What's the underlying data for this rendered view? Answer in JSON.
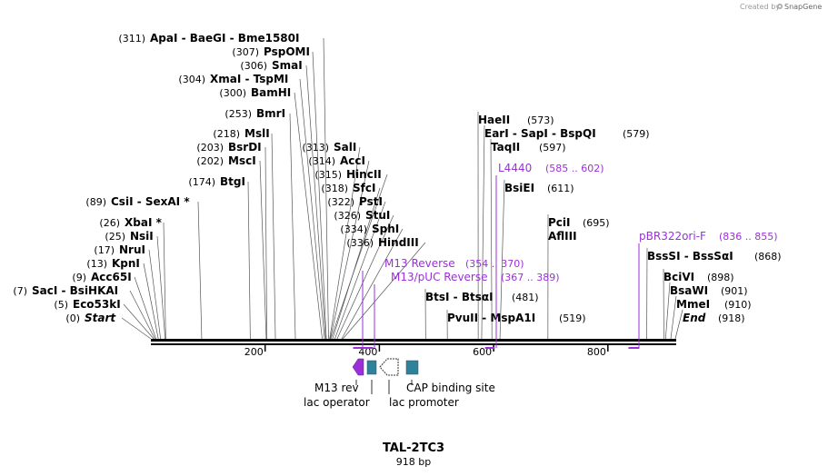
{
  "credit": {
    "prefix": "Created by",
    "brand": "SnapGene"
  },
  "map": {
    "title": "TAL-2TC3",
    "length_label": "918 bp",
    "length": 918
  },
  "ticks": [
    {
      "value": 200,
      "label": "200"
    },
    {
      "value": 400,
      "label": "400"
    },
    {
      "value": 600,
      "label": "600"
    },
    {
      "value": 800,
      "label": "800"
    }
  ],
  "sites": [
    {
      "id": "start",
      "pos": "(0)",
      "name": "Start",
      "italic": true,
      "bp": 0
    },
    {
      "id": "eco53ki",
      "pos": "(5)",
      "name": "Eco53kI",
      "bp": 5
    },
    {
      "id": "saci",
      "pos": "(7)",
      "name": "SacI  - BsiHKAI",
      "bp": 7
    },
    {
      "id": "acc65i",
      "pos": "(9)",
      "name": "Acc65I",
      "bp": 9
    },
    {
      "id": "kpni",
      "pos": "(13)",
      "name": "KpnI",
      "bp": 13
    },
    {
      "id": "nrui",
      "pos": "(17)",
      "name": "NruI",
      "bp": 17
    },
    {
      "id": "nsii",
      "pos": "(25)",
      "name": "NsiI",
      "bp": 25
    },
    {
      "id": "xbai",
      "pos": "(26)",
      "name": "XbaI *",
      "bp": 26
    },
    {
      "id": "csii",
      "pos": "(89)",
      "name": "CsiI  - SexAI *",
      "bp": 89
    },
    {
      "id": "btgi",
      "pos": "(174)",
      "name": "BtgI",
      "bp": 174
    },
    {
      "id": "msci",
      "pos": "(202)",
      "name": "MscI",
      "bp": 202
    },
    {
      "id": "bsrdi",
      "pos": "(203)",
      "name": "BsrDI",
      "bp": 203
    },
    {
      "id": "msli",
      "pos": "(218)",
      "name": "MslI",
      "bp": 218
    },
    {
      "id": "bmri",
      "pos": "(253)",
      "name": "BmrI",
      "bp": 253
    },
    {
      "id": "bamhi",
      "pos": "(300)",
      "name": "BamHI",
      "bp": 300
    },
    {
      "id": "xmai",
      "pos": "(304)",
      "name": "XmaI  - TspMI",
      "bp": 304
    },
    {
      "id": "smai",
      "pos": "(306)",
      "name": "SmaI",
      "bp": 306
    },
    {
      "id": "pspomi",
      "pos": "(307)",
      "name": "PspOMI",
      "bp": 307
    },
    {
      "id": "apai",
      "pos": "(311)",
      "name": "ApaI  - BaeGI  - Bme1580I",
      "bp": 311
    },
    {
      "id": "sali",
      "pos": "(313)",
      "name": "SalI",
      "bp": 313
    },
    {
      "id": "acci",
      "pos": "(314)",
      "name": "AccI",
      "bp": 314
    },
    {
      "id": "hincii",
      "pos": "(315)",
      "name": "HincII",
      "bp": 315
    },
    {
      "id": "sfci",
      "pos": "(318)",
      "name": "SfcI",
      "bp": 318
    },
    {
      "id": "psti",
      "pos": "(322)",
      "name": "PstI",
      "bp": 322
    },
    {
      "id": "stui",
      "pos": "(326)",
      "name": "StuI",
      "bp": 326
    },
    {
      "id": "sphi",
      "pos": "(334)",
      "name": "SphI",
      "bp": 334
    },
    {
      "id": "hindiii",
      "pos": "(336)",
      "name": "HindIII",
      "bp": 336
    },
    {
      "id": "btsi",
      "pos": "(481)",
      "name": "BtsI  - BtsαI",
      "bp": 481
    },
    {
      "id": "pvuii",
      "pos": "(519)",
      "name": "PvuII  - MspA1I",
      "bp": 519
    },
    {
      "id": "haeii",
      "pos": "(573)",
      "name": "HaeII",
      "bp": 573
    },
    {
      "id": "eari",
      "pos": "(579)",
      "name": "EarI  - SapI  - BspQI",
      "bp": 579
    },
    {
      "id": "taqii",
      "pos": "(597)",
      "name": "TaqII",
      "bp": 597
    },
    {
      "id": "bsiei",
      "pos": "(611)",
      "name": "BsiEI",
      "bp": 611
    },
    {
      "id": "pcli",
      "pos": "(695)",
      "name": "PciI",
      "bp": 695
    },
    {
      "id": "afliii",
      "pos": "",
      "name": "AflIII",
      "bp": 695
    },
    {
      "id": "bsssi",
      "pos": "(868)",
      "name": "BssSI  - BssSαI",
      "bp": 868
    },
    {
      "id": "bcivi",
      "pos": "(898)",
      "name": "BciVI",
      "bp": 898
    },
    {
      "id": "bsawi",
      "pos": "(901)",
      "name": "BsaWI",
      "bp": 901
    },
    {
      "id": "mmei",
      "pos": "(910)",
      "name": "MmeI",
      "bp": 910
    },
    {
      "id": "end",
      "pos": "(918)",
      "name": "End",
      "italic": true,
      "bp": 918
    }
  ],
  "primers": [
    {
      "id": "m13rev",
      "name": "M13 Reverse",
      "range": "(354 .. 370)",
      "start": 354,
      "end": 370
    },
    {
      "id": "m13puc",
      "name": "M13/pUC Reverse",
      "range": "(367 .. 389)",
      "start": 367,
      "end": 389
    },
    {
      "id": "l4440",
      "name": "L4440",
      "range": "(585 .. 602)",
      "start": 585,
      "end": 602
    },
    {
      "id": "pbr322",
      "name": "pBR322ori-F",
      "range": "(836 .. 855)",
      "start": 836,
      "end": 855
    }
  ],
  "features": {
    "m13rev": "M13 rev",
    "lacop": "lac operator",
    "lacprom": "lac promoter",
    "cap": "CAP binding site"
  },
  "colors": {
    "primer": "#9b30d9",
    "feature_teal": "#2e8299",
    "feature_purple": "#9b30d9"
  }
}
